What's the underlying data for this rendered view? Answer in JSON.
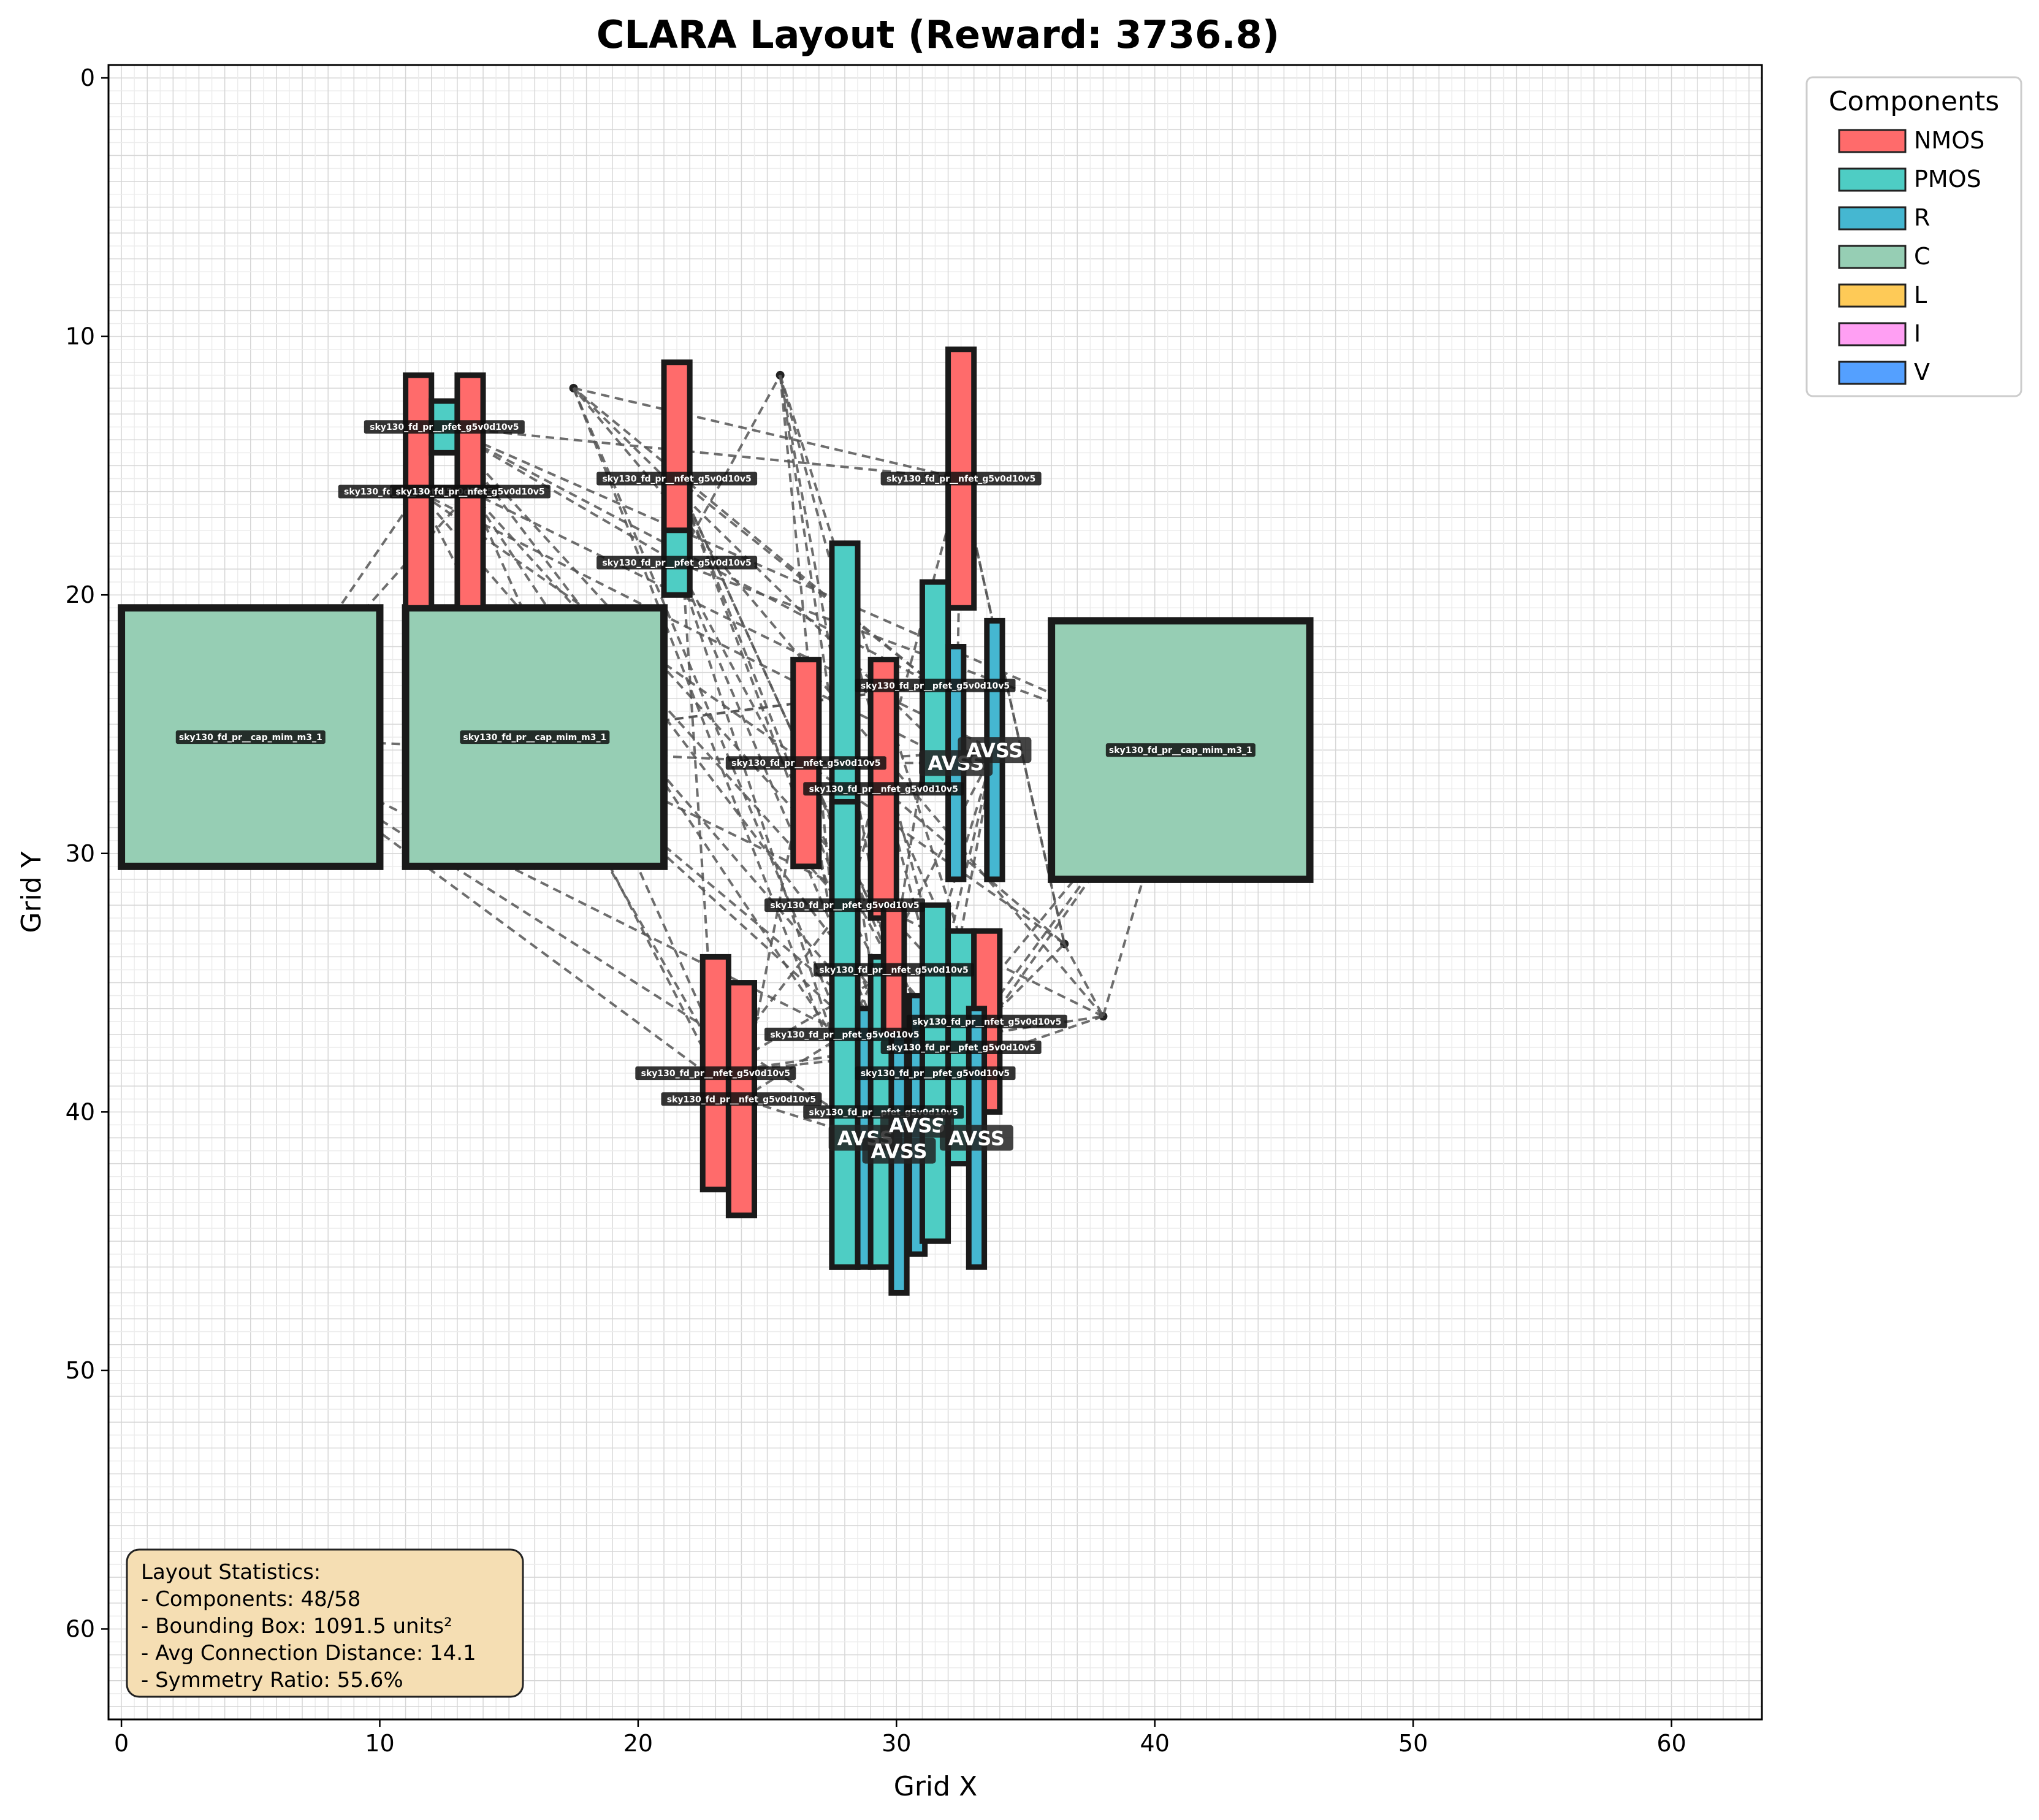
{
  "chart_data": {
    "type": "layout",
    "title": "CLARA Layout (Reward: 3736.8)",
    "xlabel": "Grid X",
    "ylabel": "Grid Y",
    "xlim": [
      -0.5,
      63.5
    ],
    "ylim": [
      63.5,
      -0.5
    ],
    "y_inverted": true,
    "grid": true,
    "x_ticks": [
      0,
      10,
      20,
      30,
      40,
      50,
      60
    ],
    "y_ticks": [
      0,
      10,
      20,
      30,
      40,
      50,
      60
    ],
    "legend": {
      "title": "Components",
      "placement": "outside-top-right",
      "entries": [
        {
          "label": "NMOS",
          "color": "#ff6b6b"
        },
        {
          "label": "PMOS",
          "color": "#4ecdc4"
        },
        {
          "label": "R",
          "color": "#45b7d1"
        },
        {
          "label": "C",
          "color": "#96ceb4"
        },
        {
          "label": "L",
          "color": "#feca57"
        },
        {
          "label": "I",
          "color": "#ff9ff3"
        },
        {
          "label": "V",
          "color": "#54a0ff"
        }
      ]
    },
    "components": [
      {
        "type": "C",
        "x": 0,
        "y": 20.5,
        "w": 10,
        "h": 10,
        "label": "sky130_fd_pr__cap_mim_m3_1"
      },
      {
        "type": "C",
        "x": 11,
        "y": 20.5,
        "w": 10,
        "h": 10,
        "label": "sky130_fd_pr__cap_mim_m3_1"
      },
      {
        "type": "C",
        "x": 36,
        "y": 21,
        "w": 10,
        "h": 10,
        "label": "sky130_fd_pr__cap_mim_m3_1"
      },
      {
        "type": "NMOS",
        "x": 11,
        "y": 11.5,
        "w": 1,
        "h": 9,
        "label": "sky130_fd_pr__nfet_g5v0d10v5"
      },
      {
        "type": "PMOS",
        "x": 12,
        "y": 12.5,
        "w": 1,
        "h": 2,
        "label": "sky130_fd_pr__pfet_g5v0d10v5"
      },
      {
        "type": "NMOS",
        "x": 13,
        "y": 11.5,
        "w": 1,
        "h": 9,
        "label": "sky130_fd_pr__nfet_g5v0d10v5"
      },
      {
        "type": "NMOS",
        "x": 21,
        "y": 11,
        "w": 1,
        "h": 9,
        "label": "sky130_fd_pr__nfet_g5v0d10v5"
      },
      {
        "type": "PMOS",
        "x": 21,
        "y": 17.5,
        "w": 1,
        "h": 2.5,
        "label": "sky130_fd_pr__pfet_g5v0d10v5"
      },
      {
        "type": "NMOS",
        "x": 32,
        "y": 10.5,
        "w": 1,
        "h": 10,
        "label": "sky130_fd_pr__nfet_g5v0d10v5"
      },
      {
        "type": "PMOS",
        "x": 27.5,
        "y": 18,
        "w": 1,
        "h": 28,
        "label": "sky130_fd_pr__pfet_g5v0d10v5"
      },
      {
        "type": "NMOS",
        "x": 26,
        "y": 22.5,
        "w": 1,
        "h": 8,
        "label": "sky130_fd_pr__nfet_g5v0d10v5"
      },
      {
        "type": "NMOS",
        "x": 29,
        "y": 22.5,
        "w": 1,
        "h": 10,
        "label": "sky130_fd_pr__nfet_g5v0d10v5"
      },
      {
        "type": "PMOS",
        "x": 31,
        "y": 19.5,
        "w": 1,
        "h": 8,
        "label": "sky130_fd_pr__pfet_g5v0d10v5"
      },
      {
        "type": "R",
        "x": 32,
        "y": 22,
        "w": 0.6,
        "h": 9,
        "label": "AVSS"
      },
      {
        "type": "R",
        "x": 33.5,
        "y": 21,
        "w": 0.6,
        "h": 10,
        "label": "AVSS"
      },
      {
        "type": "PMOS",
        "x": 27.5,
        "y": 28,
        "w": 1,
        "h": 18,
        "label": "sky130_fd_pr__pfet_g5v0d10v5"
      },
      {
        "type": "NMOS",
        "x": 22.5,
        "y": 34,
        "w": 1,
        "h": 9,
        "label": "sky130_fd_pr__nfet_g5v0d10v5"
      },
      {
        "type": "NMOS",
        "x": 23.5,
        "y": 35,
        "w": 1,
        "h": 9,
        "label": "sky130_fd_pr__nfet_g5v0d10v5"
      },
      {
        "type": "R",
        "x": 28.5,
        "y": 36,
        "w": 0.6,
        "h": 10,
        "label": "AVSS"
      },
      {
        "type": "PMOS",
        "x": 29,
        "y": 34,
        "w": 1,
        "h": 12,
        "label": "sky130_fd_pr__pfet_g5v0d10v5"
      },
      {
        "type": "R",
        "x": 29.8,
        "y": 36,
        "w": 0.6,
        "h": 11,
        "label": "AVSS"
      },
      {
        "type": "R",
        "x": 30.5,
        "y": 35.5,
        "w": 0.6,
        "h": 10,
        "label": "AVSS"
      },
      {
        "type": "PMOS",
        "x": 31,
        "y": 32,
        "w": 1,
        "h": 13,
        "label": "sky130_fd_pr__pfet_g5v0d10v5"
      },
      {
        "type": "NMOS",
        "x": 29.5,
        "y": 32,
        "w": 0.8,
        "h": 5,
        "label": "sky130_fd_pr__nfet_g5v0d10v5"
      },
      {
        "type": "PMOS",
        "x": 32,
        "y": 33,
        "w": 1,
        "h": 9,
        "label": "sky130_fd_pr__pfet_g5v0d10v5"
      },
      {
        "type": "NMOS",
        "x": 33,
        "y": 33,
        "w": 1,
        "h": 7,
        "label": "sky130_fd_pr__nfet_g5v0d10v5"
      },
      {
        "type": "R",
        "x": 32.8,
        "y": 36,
        "w": 0.6,
        "h": 10,
        "label": "AVSS"
      }
    ],
    "net_labels": [
      "AVSS",
      "AVSS",
      "AVSS",
      "AVSS",
      "AVSS",
      "AVSS",
      "AVSS",
      "AVSS"
    ],
    "connection_style": "dashed"
  },
  "stats": {
    "title": "Layout Statistics:",
    "lines": [
      "- Components: 48/58",
      "- Bounding Box: 1091.5 units²",
      "- Avg Connection Distance: 14.1",
      "- Symmetry Ratio: 55.6%"
    ]
  }
}
